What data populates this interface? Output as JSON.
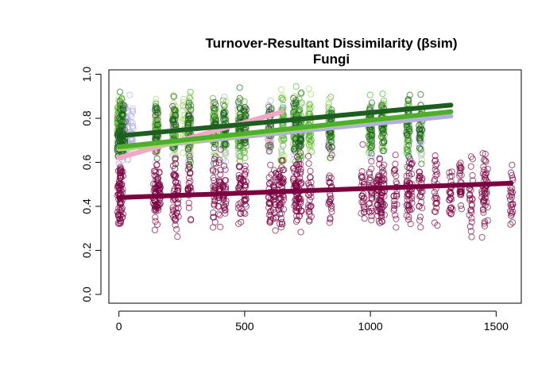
{
  "chart_data": {
    "type": "scatter",
    "title": "Turnover-Resultant Dissimilarity (βsim)",
    "subtitle": "Fungi",
    "xlabel": "",
    "ylabel": "",
    "xlim": [
      -40,
      1600
    ],
    "ylim": [
      -0.04,
      1.02
    ],
    "x_ticks": [
      0,
      500,
      1000,
      1500
    ],
    "y_ticks": [
      0.0,
      0.2,
      0.4,
      0.6,
      0.8,
      1.0
    ],
    "x_tick_labels": [
      "0",
      "500",
      "1000",
      "1500"
    ],
    "y_tick_labels": [
      "0.0",
      "0.2",
      "0.4",
      "0.6",
      "0.8",
      "1.0"
    ],
    "grid": false,
    "legend": "none",
    "series": [
      {
        "color": "#b3aee0",
        "x_values": [
          0,
          5,
          10,
          20,
          30,
          50,
          150,
          220,
          280,
          380,
          420,
          480,
          600,
          650,
          700,
          720,
          840,
          1000,
          1150,
          1200
        ],
        "y_range": [
          0.55,
          0.92
        ],
        "trend": {
          "x": [
            0,
            1320
          ],
          "y": [
            0.66,
            0.81
          ]
        }
      },
      {
        "color": "#f2a7c6",
        "x_values": [
          0,
          10,
          150,
          220,
          280,
          380,
          500,
          600
        ],
        "y_range": [
          0.58,
          0.9
        ],
        "trend": {
          "x": [
            0,
            650
          ],
          "y": [
            0.62,
            0.83
          ]
        }
      },
      {
        "color": "#a6d96a",
        "x_values": [
          0,
          10,
          150,
          220,
          260,
          280,
          380,
          420,
          480,
          650,
          700,
          720,
          760,
          840,
          1000,
          1050,
          1150,
          1200
        ],
        "y_range": [
          0.55,
          0.97
        ],
        "trend": {
          "x": [
            0,
            1320
          ],
          "y": [
            0.66,
            0.83
          ]
        }
      },
      {
        "color": "#4daf2c",
        "x_values": [
          0,
          10,
          150,
          220,
          280,
          380,
          420,
          480,
          500,
          650,
          700,
          720,
          760,
          840,
          1000,
          1050,
          1150
        ],
        "y_range": [
          0.56,
          0.96
        ],
        "trend": {
          "x": [
            0,
            1320
          ],
          "y": [
            0.67,
            0.83
          ]
        }
      },
      {
        "color": "#1b5e20",
        "x_values": [
          0,
          10,
          20,
          150,
          220,
          280,
          380,
          420,
          480,
          500,
          600,
          700,
          720,
          840,
          1000,
          1050,
          1150,
          1200
        ],
        "y_range": [
          0.56,
          0.95
        ],
        "trend": {
          "x": [
            0,
            1320
          ],
          "y": [
            0.72,
            0.86
          ]
        }
      },
      {
        "color": "#7a0040",
        "x_values": [
          0,
          5,
          10,
          140,
          150,
          160,
          220,
          230,
          280,
          380,
          400,
          420,
          480,
          500,
          600,
          620,
          640,
          650,
          700,
          710,
          720,
          760,
          840,
          970,
          1000,
          1030,
          1040,
          1050,
          1100,
          1150,
          1160,
          1200,
          1260,
          1320,
          1360,
          1400,
          1450,
          1460,
          1560
        ],
        "y_range": [
          0.23,
          0.7
        ],
        "trend": {
          "x": [
            0,
            1560
          ],
          "y": [
            0.44,
            0.505
          ]
        }
      }
    ]
  }
}
